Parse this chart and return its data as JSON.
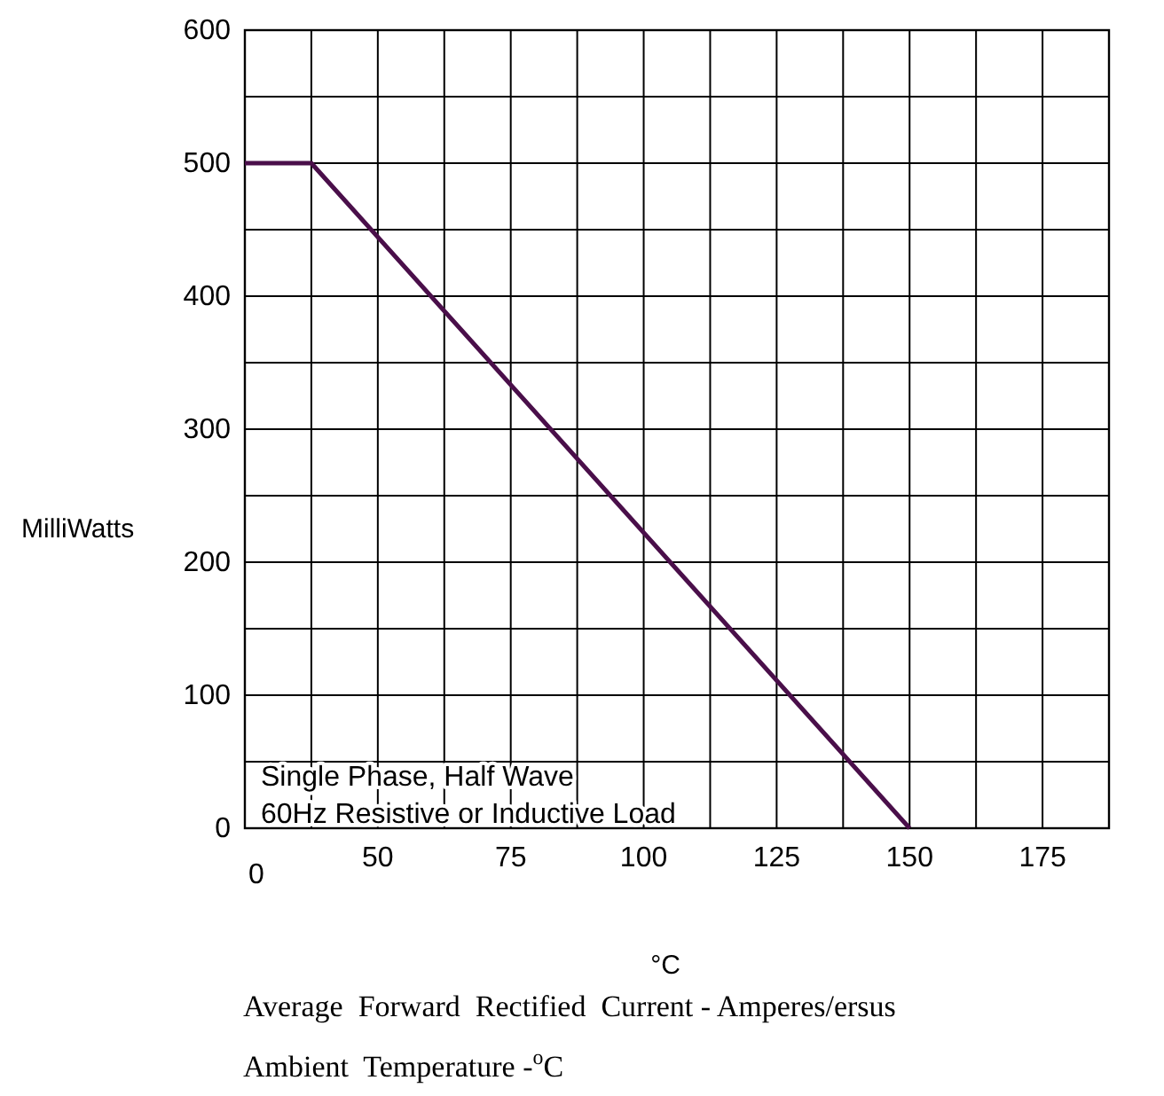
{
  "chart_data": {
    "type": "line",
    "xlabel": "°C",
    "ylabel": "MilliWatts",
    "x": [
      25,
      37.5,
      150
    ],
    "series": [
      {
        "color": "#4a0f4a",
        "values": [
          500,
          500,
          0
        ]
      }
    ],
    "xlim": [
      25,
      187.5
    ],
    "xticks": [
      {
        "value": 25,
        "label": null
      },
      {
        "value": 37.5,
        "label": null
      },
      50,
      {
        "value": 62.5,
        "label": null
      },
      75,
      {
        "value": 87.5,
        "label": null
      },
      100,
      {
        "value": 112.5,
        "label": null
      },
      125,
      {
        "value": 137.5,
        "label": null
      },
      150,
      {
        "value": 162.5,
        "label": null
      },
      175,
      {
        "value": 187.5,
        "label": null
      }
    ],
    "ylim": [
      0,
      600
    ],
    "yticks": [
      0,
      {
        "value": 50,
        "label": null
      },
      100,
      {
        "value": 150,
        "label": null
      },
      200,
      {
        "value": 250,
        "label": null
      },
      300,
      {
        "value": 350,
        "label": null
      },
      400,
      {
        "value": 450,
        "label": null
      },
      500,
      {
        "value": 550,
        "label": null
      },
      600
    ],
    "grid": true,
    "marker": "none",
    "line_style": "solid",
    "annotations": [
      "0",
      "Single Phase, Half Wave",
      "60Hz Resistive or Inductive Load",
      "Average  Forward  Rectified  Current - Amperes/ersus",
      "Ambient  Temperature -$^{o}$C"
    ]
  }
}
